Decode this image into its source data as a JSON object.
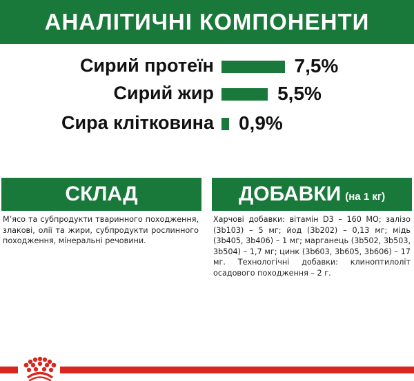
{
  "analytics": {
    "title": "АНАЛІТИЧНІ КОМПОНЕНТИ",
    "items": [
      {
        "label": "Сирий протеїн",
        "value": "7,5%",
        "percent": 7.5
      },
      {
        "label": "Сирий жир",
        "value": "5,5%",
        "percent": 5.5
      },
      {
        "label": "Сира клітковина",
        "value": "0,9%",
        "percent": 0.9
      }
    ]
  },
  "composition": {
    "title": "СКЛАД",
    "text": "М’ясо та субпродукти тваринного походження, злакові, олії та жири, субпродукти рослинного походження, мінеральні речовини."
  },
  "additives": {
    "title": "ДОБАВКИ",
    "title_suffix": "(на 1 кг)",
    "text": "Харчові добавки: вітамін D3 – 160 МО; залізо (3b103) – 5 мг; йод (3b202) – 0,13 мг; мідь (3b405, 3b406) – 1 мг; марганець (3b502, 3b503, 3b504) – 1,7 мг; цинк (3b603, 3b605, 3b606) – 17 мг. Технологічні добавки: клиноптилоліт осадового походження – 2 г."
  },
  "colors": {
    "brand_green": "#18793a",
    "brand_red": "#d8271e"
  },
  "footer": {
    "logo_icon": "royal-canin-crown-icon"
  }
}
